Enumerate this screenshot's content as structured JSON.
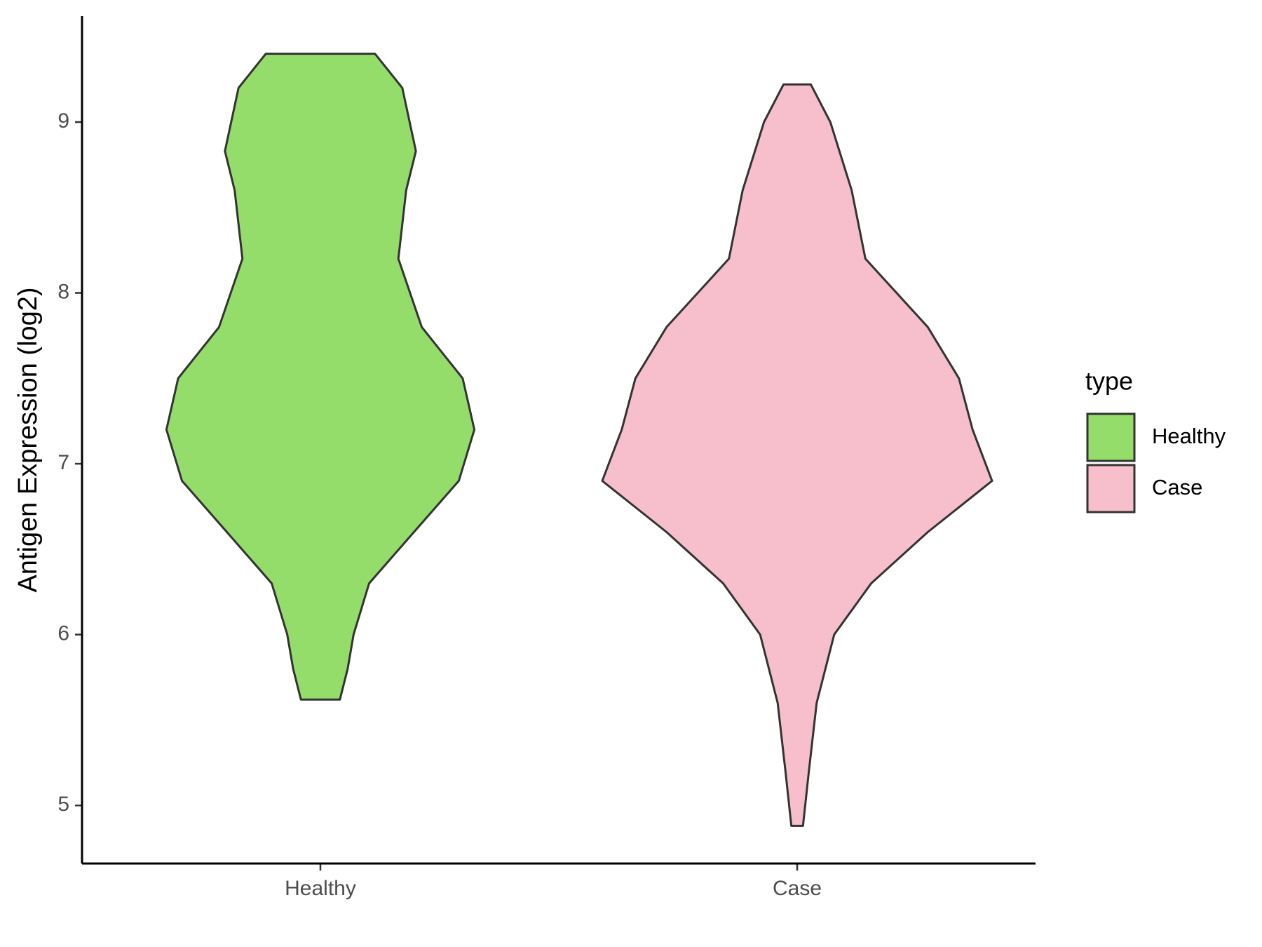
{
  "chart_data": {
    "type": "violin",
    "y_label": "Antigen Expression (log2)",
    "categories": [
      "Healthy",
      "Case"
    ],
    "legend_title": "type",
    "ylim": [
      4.66,
      9.62
    ],
    "yticks": [
      5,
      6,
      7,
      8,
      9
    ],
    "series": [
      {
        "name": "Healthy",
        "color": "#95dd6b",
        "values": [
          9.4,
          9.2,
          8.83,
          8.6,
          8.2,
          7.8,
          7.5,
          7.2,
          6.9,
          6.6,
          6.3,
          6.0,
          5.8,
          5.62
        ],
        "widths": [
          0.28,
          0.42,
          0.49,
          0.44,
          0.4,
          0.52,
          0.73,
          0.79,
          0.71,
          0.48,
          0.25,
          0.17,
          0.14,
          0.1
        ]
      },
      {
        "name": "Case",
        "color": "#f7bfcb",
        "values": [
          9.22,
          9.0,
          8.6,
          8.2,
          7.8,
          7.5,
          7.2,
          6.9,
          6.6,
          6.3,
          6.0,
          5.6,
          5.2,
          4.88
        ],
        "widths": [
          0.07,
          0.17,
          0.28,
          0.35,
          0.67,
          0.83,
          0.9,
          1.0,
          0.67,
          0.38,
          0.19,
          0.1,
          0.06,
          0.03
        ]
      }
    ]
  }
}
